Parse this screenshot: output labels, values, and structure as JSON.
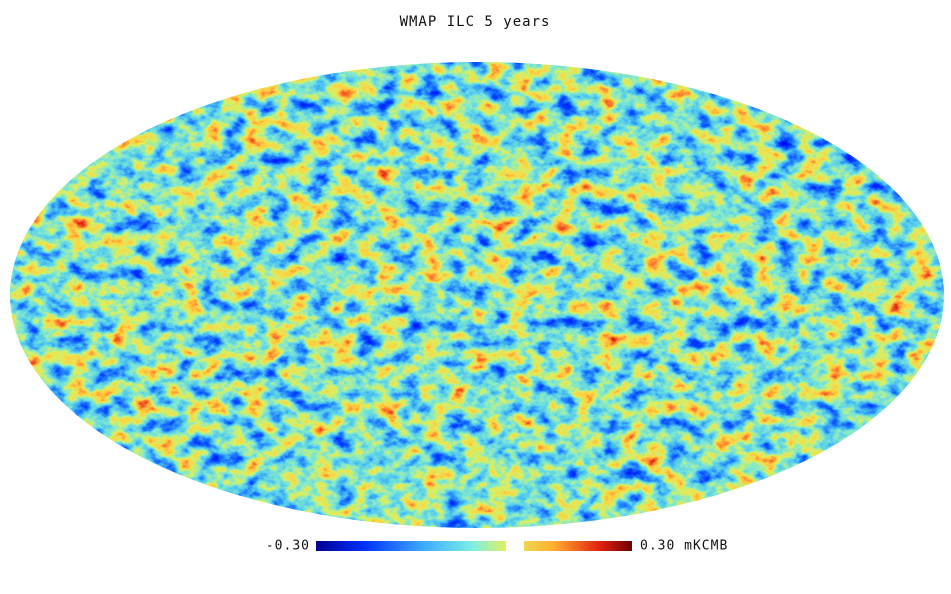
{
  "title": "WMAP ILC 5 years",
  "colorbar": {
    "min_label": "-0.30",
    "max_label": "0.30 mKCMB"
  }
}
